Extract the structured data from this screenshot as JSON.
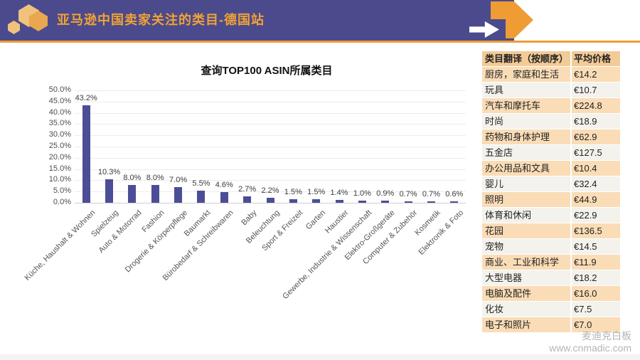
{
  "header": {
    "title": "亚马逊中国卖家关注的类目-德国站"
  },
  "colors": {
    "header_purple": "#4b4a8c",
    "accent_orange": "#ee9c33",
    "title_orange": "#f0a235",
    "bar_purple": "#4b4e96",
    "table_header_bg": "#f2cb96",
    "table_row_peach": "#fadcb6",
    "table_row_light": "#f4f2ec"
  },
  "chart_data": {
    "type": "bar",
    "title": "查询TOP100 ASIN所属类目",
    "categories": [
      "Küche, Haushalt & Wohnen",
      "Spielzeug",
      "Auto & Motorrad",
      "Fashion",
      "Drogerie & Körperpflege",
      "Baumarkt",
      "Bürobedarf & Schreibwaren",
      "Baby",
      "Beleuchtung",
      "Sport & Freizeit",
      "Garten",
      "Haustier",
      "Gewerbe, Industrie & Wissenschaft",
      "Elektro-Großgeräte",
      "Computer & Zubehör",
      "Kosmetik",
      "Elektronik & Foto"
    ],
    "values": [
      43.2,
      10.3,
      8.0,
      8.0,
      7.0,
      5.5,
      4.6,
      2.7,
      2.2,
      1.5,
      1.5,
      1.4,
      1.0,
      0.9,
      0.7,
      0.7,
      0.6
    ],
    "xlabel": "",
    "ylabel": "",
    "ylim": [
      0,
      50
    ],
    "ytick_step": 5,
    "ytick_labels": [
      "50.0%",
      "45.0%",
      "40.0%",
      "35.0%",
      "30.0%",
      "25.0%",
      "20.0%",
      "15.0%",
      "10.0%",
      "5.0%",
      "0.0%"
    ],
    "grid": true,
    "legend": "none",
    "bar_color": "#4b4e96"
  },
  "table": {
    "headers": [
      "类目翻译（按顺序）",
      "平均价格"
    ],
    "rows": [
      [
        "厨房，家庭和生活",
        "€14.2"
      ],
      [
        "玩具",
        "€10.7"
      ],
      [
        "汽车和摩托车",
        "€224.8"
      ],
      [
        "时尚",
        "€18.9"
      ],
      [
        "药物和身体护理",
        "€62.9"
      ],
      [
        "五金店",
        "€127.5"
      ],
      [
        "办公用品和文具",
        "€10.4"
      ],
      [
        "婴儿",
        "€32.4"
      ],
      [
        "照明",
        "€44.9"
      ],
      [
        "体育和休闲",
        "€22.9"
      ],
      [
        "花园",
        "€136.5"
      ],
      [
        "宠物",
        "€14.5"
      ],
      [
        "商业、工业和科学",
        "€11.9"
      ],
      [
        "大型电器",
        "€18.2"
      ],
      [
        "电脑及配件",
        "€16.0"
      ],
      [
        "化妆",
        "€7.5"
      ],
      [
        "电子和照片",
        "€7.0"
      ]
    ]
  },
  "watermark": {
    "line1": "麦迪克白板",
    "line2": "www.cnmadic.com"
  }
}
